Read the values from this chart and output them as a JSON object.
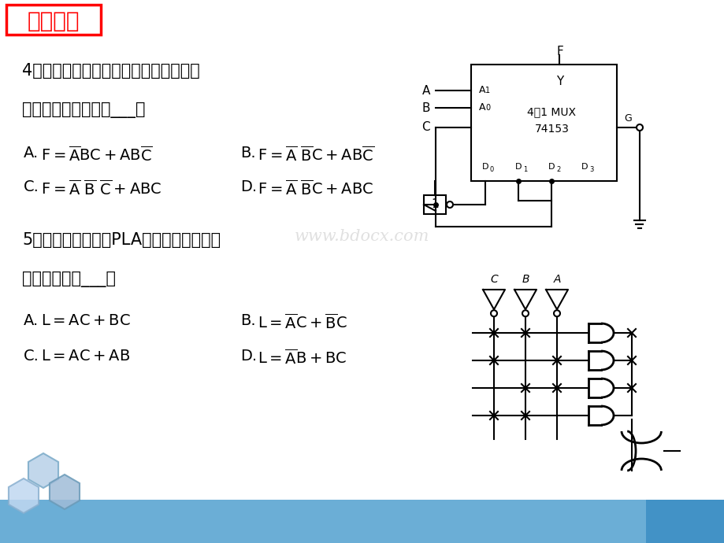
{
  "bg_color": "#ffffff",
  "title_text": "期中考试",
  "title_bg": "#ff0000",
  "title_color": "#ff0000",
  "title_border": "#ff0000",
  "q4_text1": "4、如图所示由四选一数据选择器组成的",
  "q4_text2": "电路，其逻辑关系为___。",
  "q5_text1": "5、可编程逻辑阵列PLA电路如图所示，则",
  "q5_text2": "输出表达式是___。",
  "watermark": "www.bdocx.com",
  "bottom_bar_color": "#6baed6",
  "bottom_bar_color2": "#4292c6",
  "text_color": "#000000",
  "formula_color": "#000000"
}
